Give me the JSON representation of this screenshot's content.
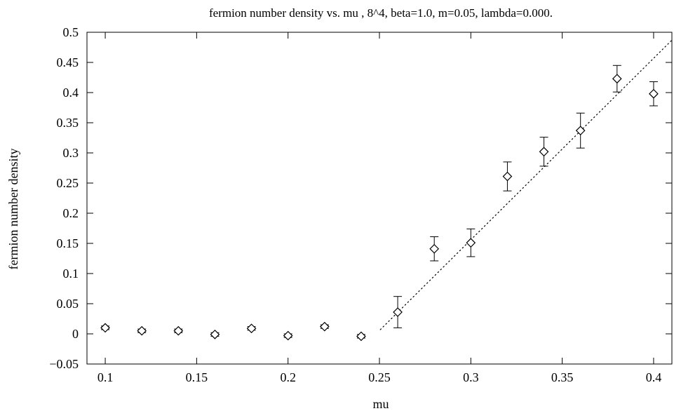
{
  "chart_data": {
    "type": "scatter",
    "title": "fermion number density vs. mu , 8^4, beta=1.0, m=0.05, lambda=0.000.",
    "xlabel": "mu",
    "ylabel": "fermion number density",
    "xlim": [
      0.09,
      0.41
    ],
    "ylim": [
      -0.05,
      0.5
    ],
    "x_ticks": [
      0.1,
      0.15,
      0.2,
      0.25,
      0.3,
      0.35,
      0.4
    ],
    "x_tick_labels": [
      "0.1",
      "0.15",
      "0.2",
      "0.25",
      "0.3",
      "0.35",
      "0.4"
    ],
    "y_ticks": [
      -0.05,
      0,
      0.05,
      0.1,
      0.15,
      0.2,
      0.25,
      0.3,
      0.35,
      0.4,
      0.45,
      0.5
    ],
    "y_tick_labels": [
      "−0.05",
      "0",
      "0.05",
      "0.1",
      "0.15",
      "0.2",
      "0.25",
      "0.3",
      "0.35",
      "0.4",
      "0.45",
      "0.5"
    ],
    "grid": false,
    "marker": "diamond",
    "series": [
      {
        "points": [
          {
            "x": 0.1,
            "y": 0.01,
            "err": 0.003
          },
          {
            "x": 0.12,
            "y": 0.005,
            "err": 0.003
          },
          {
            "x": 0.14,
            "y": 0.005,
            "err": 0.003
          },
          {
            "x": 0.16,
            "y": -0.001,
            "err": 0.003
          },
          {
            "x": 0.18,
            "y": 0.009,
            "err": 0.003
          },
          {
            "x": 0.2,
            "y": -0.003,
            "err": 0.003
          },
          {
            "x": 0.22,
            "y": 0.012,
            "err": 0.003
          },
          {
            "x": 0.24,
            "y": -0.004,
            "err": 0.003
          },
          {
            "x": 0.26,
            "y": 0.036,
            "err": 0.026
          },
          {
            "x": 0.28,
            "y": 0.141,
            "err": 0.02
          },
          {
            "x": 0.3,
            "y": 0.151,
            "err": 0.023
          },
          {
            "x": 0.32,
            "y": 0.261,
            "err": 0.024
          },
          {
            "x": 0.34,
            "y": 0.302,
            "err": 0.024
          },
          {
            "x": 0.36,
            "y": 0.337,
            "err": 0.029
          },
          {
            "x": 0.38,
            "y": 0.423,
            "err": 0.022
          },
          {
            "x": 0.4,
            "y": 0.398,
            "err": 0.02
          }
        ]
      }
    ],
    "fit_line": {
      "style": "dotted",
      "points": [
        {
          "x": 0.2505,
          "y": 0.007
        },
        {
          "x": 0.41,
          "y": 0.487
        }
      ]
    },
    "colors": {
      "axis": "#000000",
      "marker": "#000000",
      "background": "#ffffff"
    }
  }
}
